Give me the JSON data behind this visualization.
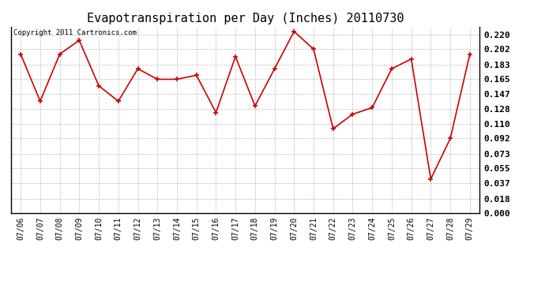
{
  "title": "Evapotranspiration per Day (Inches) 20110730",
  "copyright": "Copyright 2011 Cartronics.com",
  "dates": [
    "07/06",
    "07/07",
    "07/08",
    "07/09",
    "07/10",
    "07/11",
    "07/12",
    "07/13",
    "07/14",
    "07/15",
    "07/16",
    "07/17",
    "07/18",
    "07/19",
    "07/20",
    "07/21",
    "07/22",
    "07/23",
    "07/24",
    "07/25",
    "07/26",
    "07/27",
    "07/28",
    "07/29"
  ],
  "values": [
    0.196,
    0.138,
    0.196,
    0.213,
    0.157,
    0.138,
    0.178,
    0.165,
    0.165,
    0.17,
    0.124,
    0.193,
    0.132,
    0.178,
    0.224,
    0.202,
    0.104,
    0.122,
    0.13,
    0.178,
    0.19,
    0.042,
    0.092,
    0.196
  ],
  "line_color": "#cc0000",
  "marker_color": "#cc0000",
  "background_color": "#ffffff",
  "grid_color": "#bbbbbb",
  "ylim": [
    0.0,
    0.2299
  ],
  "yticks": [
    0.0,
    0.018,
    0.037,
    0.055,
    0.073,
    0.092,
    0.11,
    0.128,
    0.147,
    0.165,
    0.183,
    0.202,
    0.22
  ],
  "title_fontsize": 11,
  "tick_fontsize": 7,
  "copyright_fontsize": 6.5
}
